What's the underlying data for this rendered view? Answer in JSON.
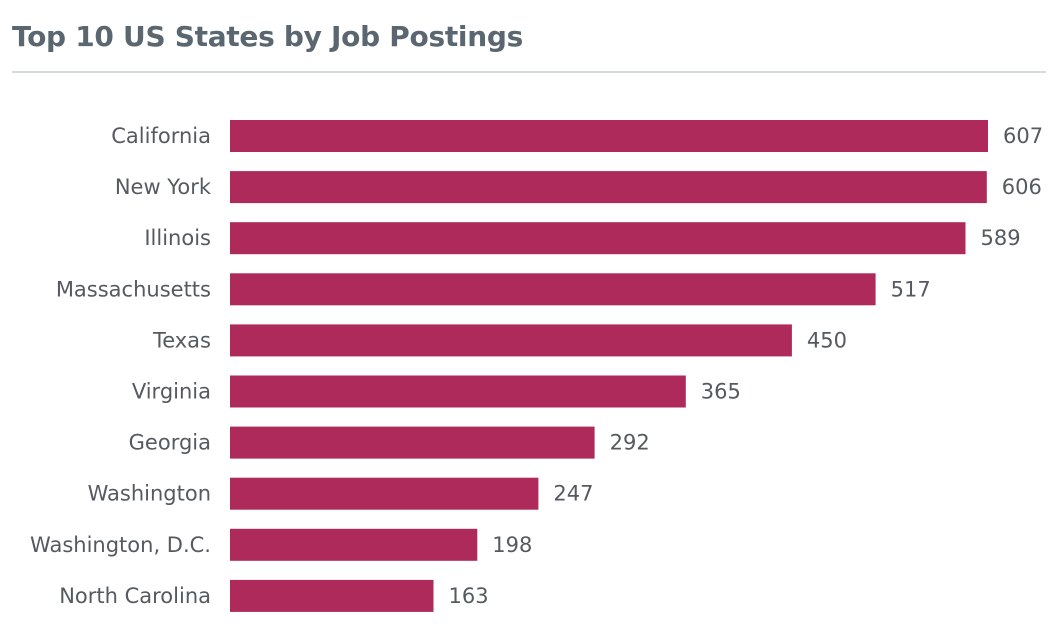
{
  "header": {
    "title": "Top 10 US States by Job Postings"
  },
  "chart_data": {
    "type": "bar",
    "orientation": "horizontal",
    "title": "Top 10 US States by Job Postings",
    "xlabel": "",
    "ylabel": "",
    "grid": false,
    "legend": "none",
    "bar_color": "#ad2a5b",
    "categories": [
      "California",
      "New York",
      "Illinois",
      "Massachusetts",
      "Texas",
      "Virginia",
      "Georgia",
      "Washington",
      "Washington, D.C.",
      "North Carolina"
    ],
    "values": [
      607,
      606,
      589,
      517,
      450,
      365,
      292,
      247,
      198,
      163
    ],
    "xlim": [
      0,
      607
    ]
  }
}
